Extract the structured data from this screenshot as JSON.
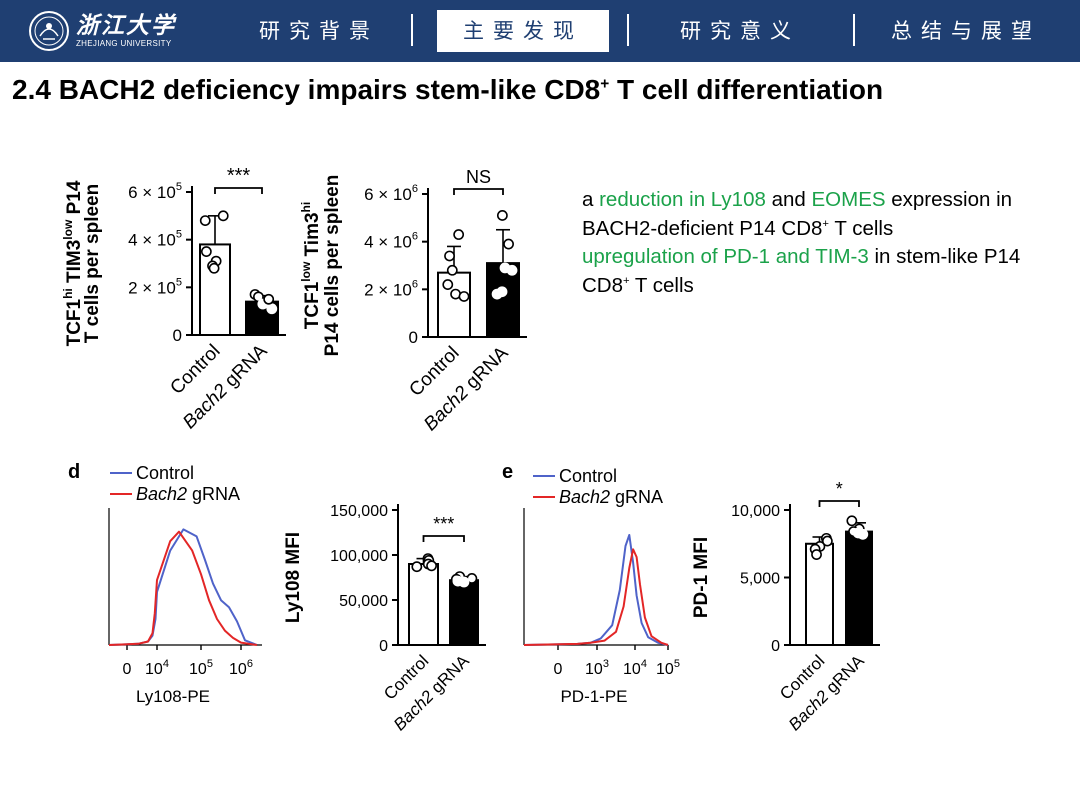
{
  "header": {
    "logo_cn": "浙江大学",
    "logo_en": "ZHEJIANG UNIVERSITY",
    "tabs": [
      {
        "label": "研究背景",
        "active": false
      },
      {
        "label": "主要发现",
        "active": true
      },
      {
        "label": "研究意义",
        "active": false
      },
      {
        "label": "总结与展望",
        "active": false
      }
    ]
  },
  "title": {
    "prefix": "2.4 BACH2 deficiency impairs stem-like CD8",
    "sup": "+",
    "suffix": " T cell differentiation"
  },
  "description": {
    "line1": {
      "t1": "a ",
      "g1": "reduction in Ly108",
      "t2": " and ",
      "g2": "EOMES",
      "t3": " expression in BACH2-deficient P14 CD8",
      "sup": "+",
      "t4": " T cells"
    },
    "line2": {
      "g1": "upregulation of PD-1 and TIM-3",
      "t1": " in stem-like P14 CD8",
      "sup": "+",
      "t2": " T cells"
    }
  },
  "chart_data": [
    {
      "id": "tcf1hi-tim3low",
      "type": "bar",
      "ylabel_lines": [
        {
          "pre": "TCF1",
          "sup1": "hi",
          "mid": " TIM3",
          "sup2": "low",
          "post": " P14"
        },
        {
          "pre": "T cells per spleen",
          "sup1": "",
          "mid": "",
          "sup2": "",
          "post": ""
        }
      ],
      "categories": [
        "Control",
        "Bach2 gRNA"
      ],
      "values": [
        380000,
        140000
      ],
      "errors": [
        120000,
        25000
      ],
      "points": [
        [
          480000,
          500000,
          350000,
          310000,
          290000,
          280000
        ],
        [
          170000,
          160000,
          130000,
          110000,
          150000
        ]
      ],
      "yticks": [
        {
          "label": "0",
          "v": 0
        },
        {
          "label": "2 × 10",
          "exp": "5",
          "v": 200000
        },
        {
          "label": "4 × 10",
          "exp": "5",
          "v": 400000
        },
        {
          "label": "6 × 10",
          "exp": "5",
          "v": 600000
        }
      ],
      "ylim": [
        0,
        600000
      ],
      "significance": "***",
      "fill": [
        "#ffffff",
        "#000000"
      ]
    },
    {
      "id": "tcf1low-tim3hi",
      "type": "bar",
      "ylabel_lines": [
        {
          "pre": "TCF1",
          "sup1": "low",
          "mid": " Tim3",
          "sup2": "hi",
          "post": ""
        },
        {
          "pre": "P14 cells per spleen",
          "sup1": "",
          "mid": "",
          "sup2": "",
          "post": ""
        }
      ],
      "categories": [
        "Control",
        "Bach2 gRNA"
      ],
      "values": [
        2700000,
        3100000
      ],
      "errors": [
        1100000,
        1400000
      ],
      "points": [
        [
          4300000,
          3400000,
          2800000,
          2200000,
          1800000,
          1700000
        ],
        [
          5100000,
          3900000,
          2900000,
          2800000,
          1900000,
          1800000
        ]
      ],
      "yticks": [
        {
          "label": "0",
          "v": 0
        },
        {
          "label": "2 × 10",
          "exp": "6",
          "v": 2000000
        },
        {
          "label": "4 × 10",
          "exp": "6",
          "v": 4000000
        },
        {
          "label": "6 × 10",
          "exp": "6",
          "v": 6000000
        }
      ],
      "ylim": [
        0,
        6000000
      ],
      "significance": "NS",
      "fill": [
        "#ffffff",
        "#000000"
      ]
    },
    {
      "id": "ly108-hist",
      "type": "line",
      "panel": "d",
      "legend": [
        {
          "name": "Control",
          "color": "#4f63c9"
        },
        {
          "name": "Bach2",
          "name_suffix": " gRNA",
          "color": "#e32626"
        }
      ],
      "xlabel": "Ly108-PE",
      "xticks": [
        {
          "base": "0",
          "exp": "",
          "v": 0
        },
        {
          "base": "10",
          "exp": "4",
          "v": 4
        },
        {
          "base": "10",
          "exp": "5",
          "v": 5
        },
        {
          "base": "10",
          "exp": "6",
          "v": 6
        }
      ],
      "series": [
        {
          "name": "Control",
          "color": "#4f63c9",
          "x": [
            0,
            1.5,
            2.8,
            3.4,
            3.8,
            4.0,
            4.3,
            4.6,
            4.9,
            5.1,
            5.3,
            5.5,
            5.7,
            5.9,
            6.1,
            6.4
          ],
          "y": [
            0,
            0.01,
            0.03,
            0.08,
            0.22,
            0.45,
            0.8,
            0.98,
            0.92,
            0.72,
            0.52,
            0.38,
            0.32,
            0.2,
            0.04,
            0
          ]
        },
        {
          "name": "Bach2 gRNA",
          "color": "#e32626",
          "x": [
            0,
            1.5,
            2.8,
            3.4,
            3.7,
            4.0,
            4.3,
            4.5,
            4.8,
            5.0,
            5.2,
            5.4,
            5.6,
            5.8,
            6.0,
            6.4
          ],
          "y": [
            0,
            0.01,
            0.03,
            0.1,
            0.27,
            0.55,
            0.88,
            0.96,
            0.8,
            0.6,
            0.38,
            0.22,
            0.12,
            0.06,
            0.02,
            0
          ]
        }
      ]
    },
    {
      "id": "ly108-mfi",
      "type": "bar",
      "ylabel_lines": [
        {
          "pre": "Ly108 MFI",
          "sup1": "",
          "mid": "",
          "sup2": "",
          "post": ""
        }
      ],
      "categories": [
        "Control",
        "Bach2 gRNA"
      ],
      "values": [
        90000,
        72000
      ],
      "errors": [
        6000,
        4000
      ],
      "points": [
        [
          96000,
          94000,
          90000,
          88000,
          87000
        ],
        [
          76000,
          74000,
          73000,
          71000,
          70000
        ]
      ],
      "yticks": [
        {
          "label": "0",
          "v": 0
        },
        {
          "label": "50,000",
          "v": 50000
        },
        {
          "label": "100,000",
          "v": 100000
        },
        {
          "label": "150,000",
          "v": 150000
        }
      ],
      "ylim": [
        0,
        150000
      ],
      "significance": "***",
      "fill": [
        "#ffffff",
        "#000000"
      ]
    },
    {
      "id": "pd1-hist",
      "type": "line",
      "panel": "e",
      "legend": [
        {
          "name": "Control",
          "color": "#4f63c9"
        },
        {
          "name": "Bach2",
          "name_suffix": " gRNA",
          "color": "#e32626"
        }
      ],
      "xlabel": "PD-1-PE",
      "xticks": [
        {
          "base": "0",
          "exp": "",
          "v": 0
        },
        {
          "base": "10",
          "exp": "3",
          "v": 3
        },
        {
          "base": "10",
          "exp": "4",
          "v": 4
        },
        {
          "base": "10",
          "exp": "5",
          "v": 5
        }
      ],
      "series": [
        {
          "name": "Control",
          "color": "#4f63c9",
          "x": [
            0,
            1.5,
            2.5,
            3.1,
            3.4,
            3.6,
            3.75,
            3.85,
            3.95,
            4.05,
            4.2,
            4.4,
            4.7,
            5.2
          ],
          "y": [
            0,
            0.01,
            0.02,
            0.06,
            0.18,
            0.5,
            0.9,
            1.0,
            0.75,
            0.45,
            0.2,
            0.07,
            0.02,
            0
          ]
        },
        {
          "name": "Bach2 gRNA",
          "color": "#e32626",
          "x": [
            0,
            1.5,
            2.5,
            3.2,
            3.5,
            3.7,
            3.85,
            3.95,
            4.05,
            4.15,
            4.3,
            4.5,
            4.8,
            5.2
          ],
          "y": [
            0,
            0.01,
            0.02,
            0.04,
            0.12,
            0.35,
            0.7,
            0.87,
            0.8,
            0.55,
            0.25,
            0.08,
            0.02,
            0
          ]
        }
      ]
    },
    {
      "id": "pd1-mfi",
      "type": "bar",
      "ylabel_lines": [
        {
          "pre": "PD-1 MFI",
          "sup1": "",
          "mid": "",
          "sup2": "",
          "post": ""
        }
      ],
      "categories": [
        "Control",
        "Bach2 gRNA"
      ],
      "values": [
        7500,
        8400
      ],
      "errors": [
        500,
        650
      ],
      "points": [
        [
          7900,
          7700,
          7300,
          7100,
          6700
        ],
        [
          9200,
          8600,
          8400,
          8300,
          8200
        ]
      ],
      "yticks": [
        {
          "label": "0",
          "v": 0
        },
        {
          "label": "5,000",
          "v": 5000
        },
        {
          "label": "10,000",
          "v": 10000
        }
      ],
      "ylim": [
        0,
        10000
      ],
      "significance": "*",
      "fill": [
        "#ffffff",
        "#000000"
      ]
    }
  ]
}
